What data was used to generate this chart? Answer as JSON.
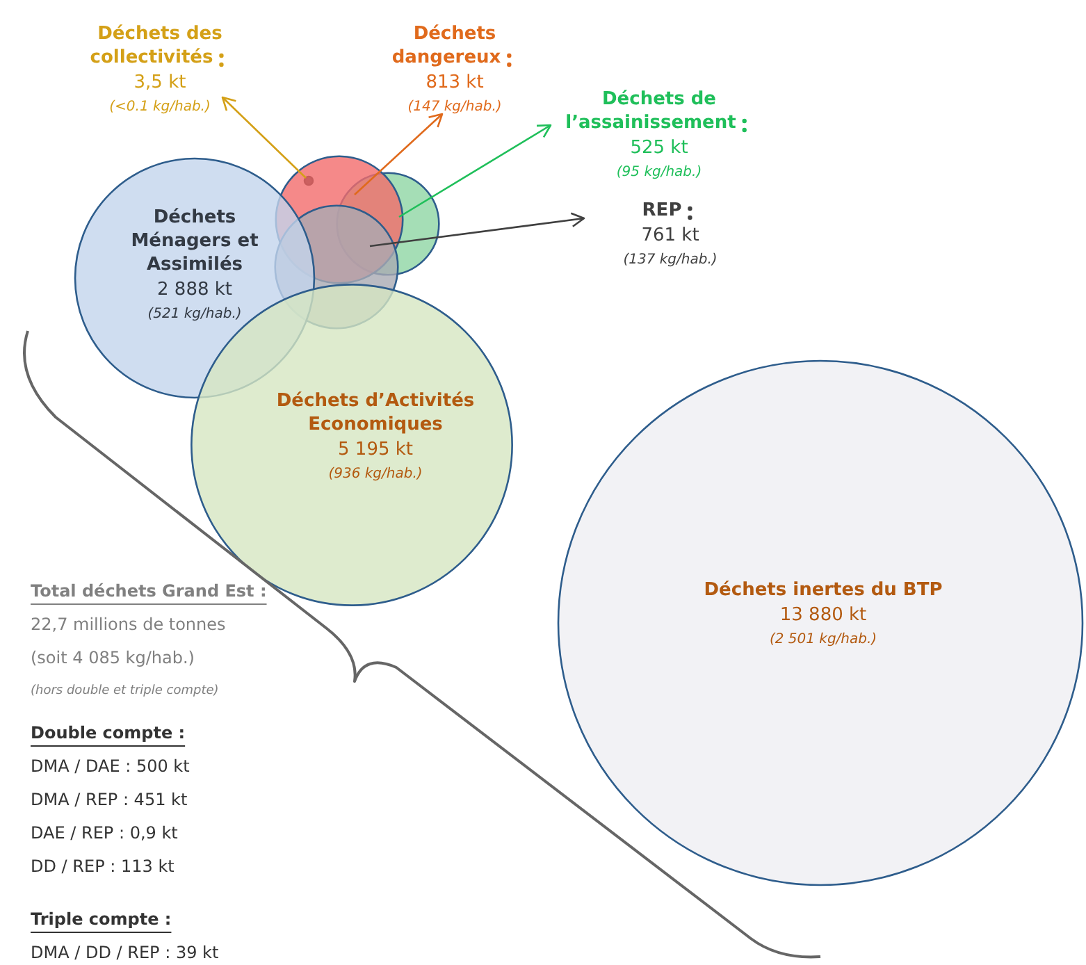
{
  "chart_data": {
    "type": "other",
    "categories": [
      "Déchets des collectivités",
      "Déchets dangereux",
      "Déchets de l’assainissement",
      "REP",
      "Déchets Ménagers et Assimilés",
      "Déchets d’Activités Economiques",
      "Déchets inertes du BTP"
    ],
    "values": [
      3.5,
      813,
      525,
      761,
      2888,
      5195,
      13880
    ],
    "value_labels": [
      "3,5 kt",
      "813 kt",
      "525 kt",
      "761 kt",
      "2 888 kt",
      "5 195 kt",
      "13 880 kt"
    ],
    "colors": [
      "#333333",
      "#f26b6b",
      "#8ed6a4",
      "#a9aab3",
      "#c3d4ec",
      "#d6e6c2",
      "#efeff2"
    ],
    "annotations": [
      "(<0.1 kg/hab.)",
      "(147 kg/hab.)",
      "(95 kg/hab.)",
      "(137 kg/hab.)",
      "(521 kg/hab.)",
      "(936 kg/hab.)",
      "(2 501 kg/hab.)",
      "Total déchets Grand Est :",
      "22,7 millions de tonnes",
      "(soit 4 085 kg/hab.)",
      "(hors double et triple compte)",
      "Double compte :",
      "DMA / DAE : 500 kt",
      "DMA / REP : 451 kt",
      "DAE / REP : 0,9 kt",
      "DD / REP : 113 kt",
      "Triple compte :",
      "DMA / DD / REP : 39 kt"
    ]
  }
}
